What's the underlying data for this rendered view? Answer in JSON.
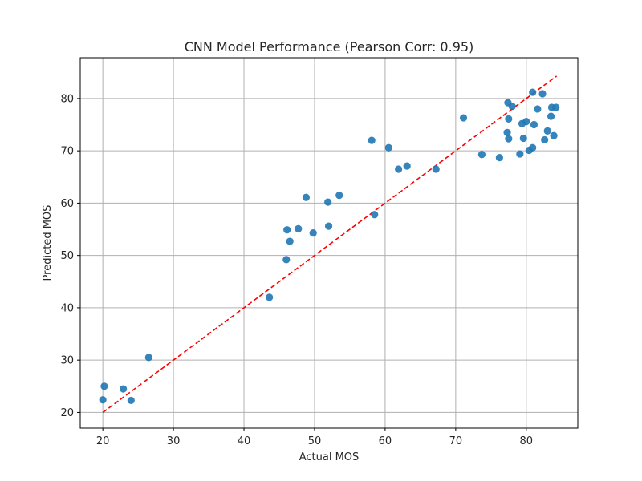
{
  "chart_data": {
    "type": "scatter",
    "title": "CNN Model Performance (Pearson Corr: 0.95)",
    "xlabel": "Actual MOS",
    "ylabel": "Predicted MOS",
    "xlim": [
      16.8,
      87.3
    ],
    "ylim": [
      17.0,
      87.8
    ],
    "xticks": [
      20,
      30,
      40,
      50,
      60,
      70,
      80
    ],
    "yticks": [
      20,
      30,
      40,
      50,
      60,
      70,
      80
    ],
    "grid": true,
    "point_color": "#1f77b4",
    "line_color": "#ff0000",
    "points": [
      {
        "x": 20.0,
        "y": 22.4
      },
      {
        "x": 20.2,
        "y": 25.0
      },
      {
        "x": 22.9,
        "y": 24.5
      },
      {
        "x": 24.0,
        "y": 22.3
      },
      {
        "x": 26.5,
        "y": 30.5
      },
      {
        "x": 43.6,
        "y": 42.0
      },
      {
        "x": 46.0,
        "y": 49.2
      },
      {
        "x": 46.1,
        "y": 54.9
      },
      {
        "x": 46.5,
        "y": 52.7
      },
      {
        "x": 47.7,
        "y": 55.1
      },
      {
        "x": 48.8,
        "y": 61.1
      },
      {
        "x": 49.8,
        "y": 54.3
      },
      {
        "x": 51.9,
        "y": 60.2
      },
      {
        "x": 52.0,
        "y": 55.6
      },
      {
        "x": 53.5,
        "y": 61.5
      },
      {
        "x": 58.1,
        "y": 72.0
      },
      {
        "x": 58.5,
        "y": 57.8
      },
      {
        "x": 60.5,
        "y": 70.6
      },
      {
        "x": 61.9,
        "y": 66.5
      },
      {
        "x": 63.1,
        "y": 67.1
      },
      {
        "x": 67.2,
        "y": 66.5
      },
      {
        "x": 71.1,
        "y": 76.3
      },
      {
        "x": 73.7,
        "y": 69.3
      },
      {
        "x": 76.2,
        "y": 68.7
      },
      {
        "x": 77.3,
        "y": 73.5
      },
      {
        "x": 77.4,
        "y": 79.2
      },
      {
        "x": 77.5,
        "y": 76.1
      },
      {
        "x": 77.5,
        "y": 72.3
      },
      {
        "x": 78.0,
        "y": 78.5
      },
      {
        "x": 79.1,
        "y": 69.4
      },
      {
        "x": 79.4,
        "y": 75.2
      },
      {
        "x": 79.6,
        "y": 72.4
      },
      {
        "x": 80.0,
        "y": 75.6
      },
      {
        "x": 80.4,
        "y": 70.1
      },
      {
        "x": 80.9,
        "y": 81.2
      },
      {
        "x": 80.9,
        "y": 70.6
      },
      {
        "x": 81.1,
        "y": 75.0
      },
      {
        "x": 81.6,
        "y": 78.0
      },
      {
        "x": 82.3,
        "y": 80.9
      },
      {
        "x": 82.6,
        "y": 72.1
      },
      {
        "x": 83.0,
        "y": 73.8
      },
      {
        "x": 83.5,
        "y": 76.6
      },
      {
        "x": 83.6,
        "y": 78.3
      },
      {
        "x": 83.9,
        "y": 72.9
      },
      {
        "x": 84.2,
        "y": 78.3
      }
    ],
    "reference_line": {
      "x": [
        20.0,
        84.3
      ],
      "y": [
        20.0,
        84.3
      ]
    }
  }
}
